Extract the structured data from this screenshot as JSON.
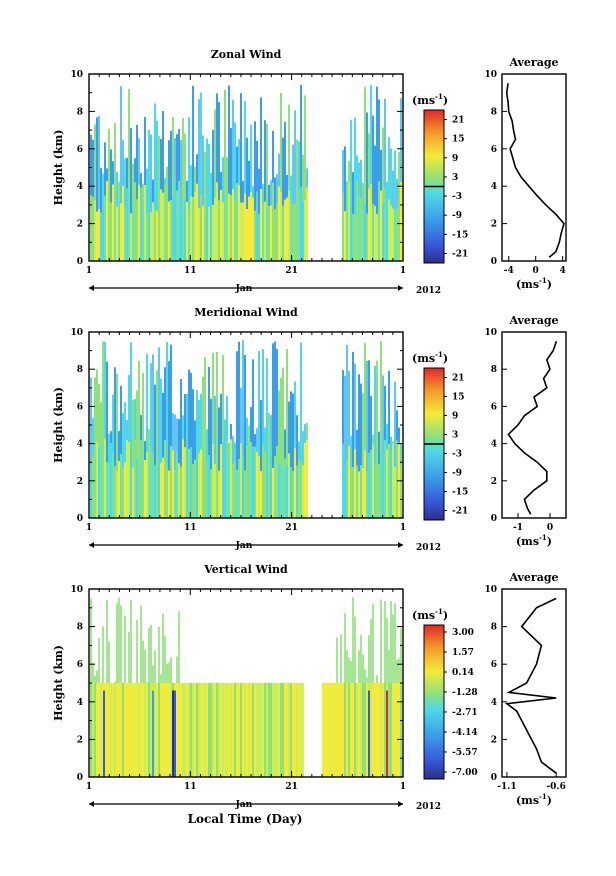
{
  "xlabel": "Local Time (Day)",
  "month_label": "Jan",
  "year_label": "2012",
  "ylabel": "Height (km)",
  "colorbar_unit": "(ms",
  "unit_sup": "-1",
  "unit_close": ")",
  "average_title": "Average",
  "panels": [
    {
      "title": "Zonal Wind",
      "yticks": [
        "0",
        "2",
        "4",
        "6",
        "8",
        "10"
      ],
      "xticks": [
        "1",
        "11",
        "21",
        "1"
      ],
      "colorbar_ticks": [
        "21",
        "15",
        "9",
        "3",
        "-3",
        "-9",
        "-15",
        "-21"
      ],
      "avg_xticks": [
        "-4",
        "0",
        "4"
      ]
    },
    {
      "title": "Meridional Wind",
      "yticks": [
        "0",
        "2",
        "4",
        "6",
        "8",
        "10"
      ],
      "xticks": [
        "1",
        "11",
        "21",
        "1"
      ],
      "colorbar_ticks": [
        "21",
        "15",
        "9",
        "3",
        "-3",
        "-9",
        "-15",
        "-21"
      ],
      "avg_xticks": [
        "-1",
        "0"
      ]
    },
    {
      "title": "Vertical Wind",
      "yticks": [
        "0",
        "2",
        "4",
        "6",
        "8",
        "10"
      ],
      "xticks": [
        "1",
        "11",
        "21",
        "1"
      ],
      "colorbar_ticks": [
        "3.00",
        "1.57",
        "0.14",
        "-1.28",
        "-2.71",
        "-4.14",
        "-5.57",
        "-7.00"
      ],
      "avg_xticks": [
        "-1.1",
        "-0.6"
      ]
    }
  ],
  "chart_data": [
    {
      "type": "heatmap",
      "title": "Zonal Wind",
      "xlabel": "",
      "ylabel": "Height (km)",
      "xlim_days": [
        1,
        32
      ],
      "ylim": [
        0,
        10
      ],
      "data_gap_days": [
        22.5,
        25.8
      ],
      "colorbar": {
        "unit": "(ms-1)",
        "range": [
          -24,
          24
        ],
        "ticks": [
          21,
          15,
          9,
          3,
          -3,
          -9,
          -15,
          -21
        ]
      },
      "average_profile": {
        "title": "Average",
        "xlabel": "(ms-1)",
        "xlim": [
          -5,
          4.5
        ],
        "height_km": [
          0.2,
          0.5,
          1,
          1.5,
          2,
          2.5,
          3,
          3.5,
          4,
          4.5,
          5,
          5.5,
          6,
          6.5,
          7,
          7.5,
          8,
          8.5,
          9,
          9.5
        ],
        "values": [
          2.0,
          3.0,
          3.5,
          3.8,
          4.2,
          3.0,
          1.5,
          0.2,
          -1.0,
          -2.2,
          -3.0,
          -3.4,
          -3.8,
          -3.0,
          -3.3,
          -3.5,
          -4.0,
          -4.1,
          -4.3,
          -4.1
        ]
      }
    },
    {
      "type": "heatmap",
      "title": "Meridional Wind",
      "xlabel": "",
      "ylabel": "Height (km)",
      "xlim_days": [
        1,
        32
      ],
      "ylim": [
        0,
        10
      ],
      "data_gap_days": [
        22.5,
        25.8
      ],
      "colorbar": {
        "unit": "(ms-1)",
        "range": [
          -24,
          24
        ],
        "ticks": [
          21,
          15,
          9,
          3,
          -3,
          -9,
          -15,
          -21
        ]
      },
      "average_profile": {
        "title": "Average",
        "xlabel": "(ms-1)",
        "xlim": [
          -1.5,
          0.5
        ],
        "height_km": [
          0.2,
          0.5,
          1,
          1.5,
          2,
          2.5,
          3,
          3.5,
          4,
          4.5,
          5,
          5.5,
          6,
          6.5,
          7,
          7.5,
          8,
          8.5,
          9,
          9.5
        ],
        "values": [
          -0.6,
          -0.7,
          -0.8,
          -0.5,
          -0.1,
          -0.1,
          -0.4,
          -0.8,
          -1.1,
          -1.3,
          -1.0,
          -0.8,
          -0.4,
          -0.5,
          -0.1,
          -0.2,
          0.0,
          -0.1,
          0.1,
          0.2
        ]
      }
    },
    {
      "type": "heatmap",
      "title": "Vertical Wind",
      "xlabel": "Local Time (Day)",
      "ylabel": "Height (km)",
      "xlim_days": [
        1,
        32
      ],
      "ylim": [
        0,
        10
      ],
      "data_gap_days": [
        22.1,
        23.9
      ],
      "colorbar": {
        "unit": "(ms-1)",
        "range": [
          -7.5,
          3.5
        ],
        "ticks": [
          3.0,
          1.57,
          0.14,
          -1.28,
          -2.71,
          -4.14,
          -5.57,
          -7.0
        ]
      },
      "average_profile": {
        "title": "Average",
        "xlabel": "(ms-1)",
        "xlim": [
          -1.15,
          -0.5
        ],
        "height_km": [
          0.2,
          0.8,
          1.5,
          2,
          2.5,
          3,
          3.5,
          3.9,
          4.2,
          4.5,
          5,
          6,
          7,
          8,
          9,
          9.5
        ],
        "values": [
          -0.6,
          -0.75,
          -0.8,
          -0.85,
          -0.9,
          -0.95,
          -1.0,
          -1.1,
          -0.6,
          -1.08,
          -0.9,
          -0.8,
          -0.75,
          -0.95,
          -0.8,
          -0.6
        ]
      }
    }
  ]
}
